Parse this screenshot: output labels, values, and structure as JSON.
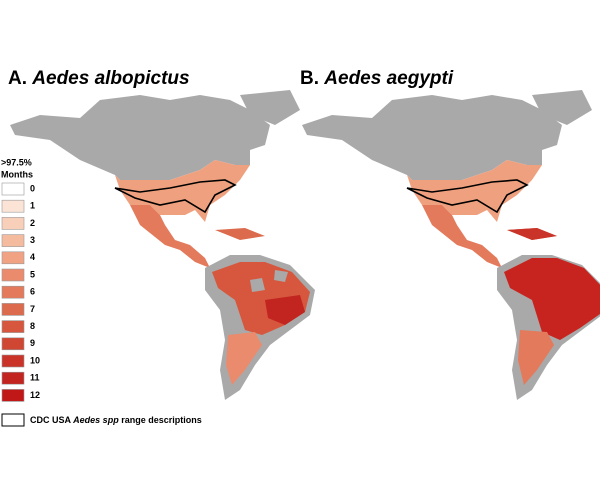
{
  "panels": [
    {
      "letter": "A.",
      "species": "Aedes albopictus"
    },
    {
      "letter": "B.",
      "species": "Aedes aegypti"
    }
  ],
  "legend": {
    "title": ">97.5%",
    "subtitle": "Months",
    "items": [
      {
        "label": 0,
        "color": "#ffffff"
      },
      {
        "label": 1,
        "color": "#fbe3d6"
      },
      {
        "label": 2,
        "color": "#f8cfb9"
      },
      {
        "label": 3,
        "color": "#f5bb9e"
      },
      {
        "label": 4,
        "color": "#f0a283"
      },
      {
        "label": 5,
        "color": "#ea8b6d"
      },
      {
        "label": 6,
        "color": "#e37a5c"
      },
      {
        "label": 7,
        "color": "#dc6a4c"
      },
      {
        "label": 8,
        "color": "#d6573d"
      },
      {
        "label": 9,
        "color": "#cf4633"
      },
      {
        "label": 10,
        "color": "#c93328"
      },
      {
        "label": 11,
        "color": "#c2241f"
      },
      {
        "label": 12,
        "color": "#c01717"
      }
    ],
    "outline": {
      "before": "CDC USA ",
      "italic": "Aedes spp",
      "after": " range descriptions"
    }
  }
}
